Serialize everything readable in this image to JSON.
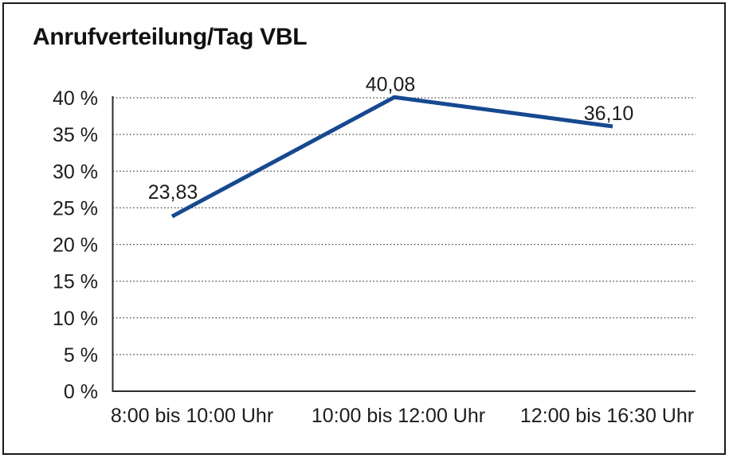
{
  "chart_data": {
    "type": "line",
    "title": "Anrufverteilung/Tag VBL",
    "categories": [
      "8:00 bis 10:00 Uhr",
      "10:00 bis 12:00 Uhr",
      "12:00 bis 16:30 Uhr"
    ],
    "values": [
      23.83,
      40.08,
      36.1
    ],
    "point_labels": [
      "23,83",
      "40,08",
      "36,10"
    ],
    "yticks": [
      {
        "value": 0,
        "label": "0 %"
      },
      {
        "value": 5,
        "label": "5 %"
      },
      {
        "value": 10,
        "label": "10 %"
      },
      {
        "value": 15,
        "label": "15 %"
      },
      {
        "value": 20,
        "label": "20 %"
      },
      {
        "value": 25,
        "label": "25 %"
      },
      {
        "value": 30,
        "label": "30 %"
      },
      {
        "value": 35,
        "label": "35 %"
      },
      {
        "value": 40,
        "label": "40 %"
      }
    ],
    "ylim": [
      0,
      40
    ],
    "xlabel": "",
    "ylabel": "",
    "grid": "horizontal-dotted",
    "legend": "none",
    "colors": {
      "line": "#16498f",
      "grid": "#3c3c3c",
      "axis": "#2b2b2b",
      "text": "#1c1c1c",
      "background": "#ffffff",
      "frame_border": "#1a1a1a"
    }
  }
}
